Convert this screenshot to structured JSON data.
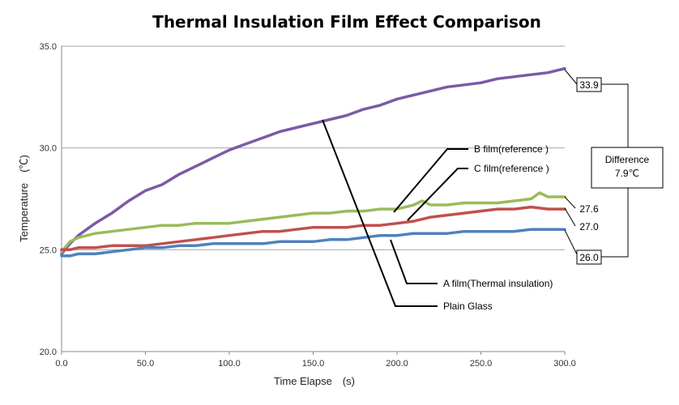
{
  "chart_data": {
    "type": "line",
    "title": "Thermal Insulation Film Effect Comparison",
    "xlabel": "Time Elapse　(s)",
    "ylabel": "Temperature　(℃)",
    "xlim": [
      0,
      300
    ],
    "ylim": [
      20,
      35
    ],
    "xticks": [
      "0.0",
      "50.0",
      "100.0",
      "150.0",
      "200.0",
      "250.0",
      "300.0"
    ],
    "yticks": [
      "20.0",
      "25.0",
      "30.0",
      "35.0"
    ],
    "grid": "horizontal",
    "series": [
      {
        "name": "Plain Glass",
        "color": "#7b5aa6",
        "x": [
          0,
          5,
          10,
          20,
          30,
          40,
          50,
          60,
          70,
          80,
          90,
          100,
          110,
          120,
          130,
          140,
          150,
          160,
          170,
          180,
          190,
          200,
          210,
          220,
          230,
          240,
          250,
          260,
          270,
          280,
          290,
          300
        ],
        "y": [
          24.8,
          25.3,
          25.7,
          26.3,
          26.8,
          27.4,
          27.9,
          28.2,
          28.7,
          29.1,
          29.5,
          29.9,
          30.2,
          30.5,
          30.8,
          31.0,
          31.2,
          31.4,
          31.6,
          31.9,
          32.1,
          32.4,
          32.6,
          32.8,
          33.0,
          33.1,
          33.2,
          33.4,
          33.5,
          33.6,
          33.7,
          33.9
        ]
      },
      {
        "name": "B film(reference )",
        "color": "#9bbb59",
        "x": [
          0,
          5,
          10,
          20,
          30,
          40,
          50,
          60,
          70,
          80,
          90,
          100,
          110,
          120,
          130,
          140,
          150,
          160,
          170,
          180,
          190,
          200,
          210,
          215,
          220,
          230,
          240,
          250,
          260,
          270,
          280,
          285,
          290,
          300
        ],
        "y": [
          24.9,
          25.4,
          25.6,
          25.8,
          25.9,
          26.0,
          26.1,
          26.2,
          26.2,
          26.3,
          26.3,
          26.3,
          26.4,
          26.5,
          26.6,
          26.7,
          26.8,
          26.8,
          26.9,
          26.9,
          27.0,
          27.0,
          27.2,
          27.4,
          27.2,
          27.2,
          27.3,
          27.3,
          27.3,
          27.4,
          27.5,
          27.8,
          27.6,
          27.6
        ]
      },
      {
        "name": "C film(reference )",
        "color": "#c0504d",
        "x": [
          0,
          5,
          10,
          20,
          30,
          40,
          50,
          60,
          70,
          80,
          90,
          100,
          110,
          120,
          130,
          140,
          150,
          160,
          170,
          180,
          190,
          200,
          210,
          220,
          230,
          240,
          250,
          260,
          270,
          280,
          290,
          300
        ],
        "y": [
          25.0,
          25.0,
          25.1,
          25.1,
          25.2,
          25.2,
          25.2,
          25.3,
          25.4,
          25.5,
          25.6,
          25.7,
          25.8,
          25.9,
          25.9,
          26.0,
          26.1,
          26.1,
          26.1,
          26.2,
          26.2,
          26.3,
          26.4,
          26.6,
          26.7,
          26.8,
          26.9,
          27.0,
          27.0,
          27.1,
          27.0,
          27.0
        ]
      },
      {
        "name": "A film(Thermal insulation)",
        "color": "#4f81bd",
        "x": [
          0,
          5,
          10,
          20,
          30,
          40,
          50,
          60,
          70,
          80,
          90,
          100,
          110,
          120,
          130,
          140,
          150,
          160,
          170,
          180,
          190,
          200,
          210,
          220,
          230,
          240,
          250,
          260,
          270,
          280,
          290,
          300
        ],
        "y": [
          24.7,
          24.7,
          24.8,
          24.8,
          24.9,
          25.0,
          25.1,
          25.1,
          25.2,
          25.2,
          25.3,
          25.3,
          25.3,
          25.3,
          25.4,
          25.4,
          25.4,
          25.5,
          25.5,
          25.6,
          25.7,
          25.7,
          25.8,
          25.8,
          25.8,
          25.9,
          25.9,
          25.9,
          25.9,
          26.0,
          26.0,
          26.0
        ]
      }
    ],
    "end_labels": [
      "33.9",
      "27.6",
      "27.0",
      "26.0"
    ],
    "difference_label": [
      "Difference",
      "7.9℃"
    ],
    "annotations": [
      "B film(reference )",
      "C film(reference )",
      "A film(Thermal insulation)",
      "Plain Glass"
    ]
  }
}
